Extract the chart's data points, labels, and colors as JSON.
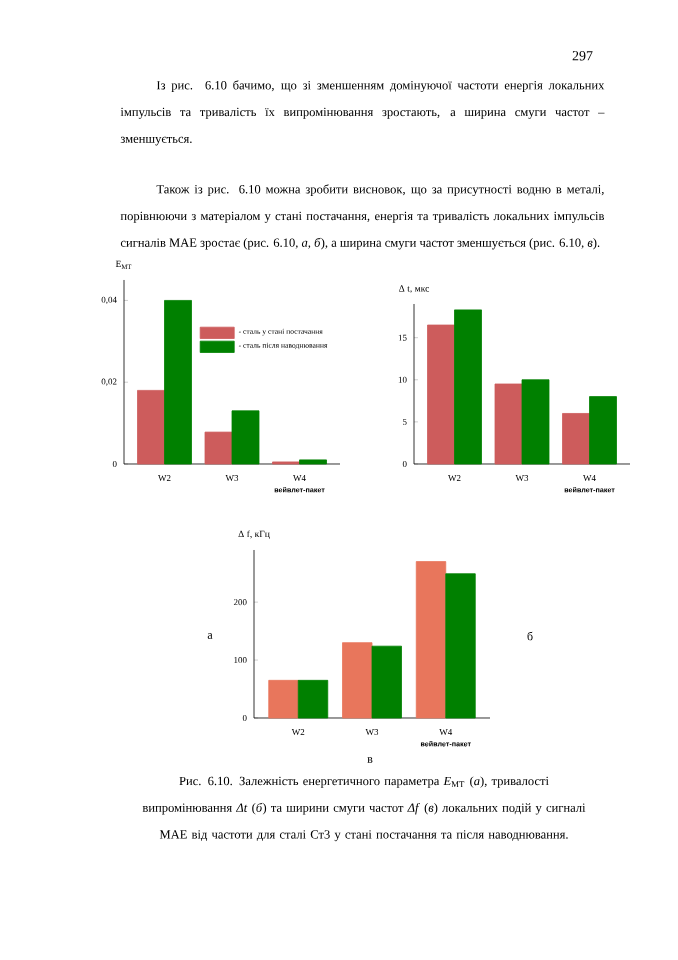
{
  "chart_data": [
    {
      "type": "bar",
      "ylabel": "E$_{МТ}$",
      "xlabel": "вейвлет-пакет",
      "categories": [
        "W2",
        "W3",
        "W4"
      ],
      "series": [
        {
          "name": "- сталь у стані постачання",
          "color": "#cd5c5c",
          "values": [
            0.018,
            0.0078,
            0.0005
          ]
        },
        {
          "name": "- сталь після наводнювання",
          "color": "#008000",
          "values": [
            0.04,
            0.013,
            0.001
          ]
        }
      ],
      "ylim": [
        0,
        0.045
      ],
      "yticks": [
        0,
        {
          "value": 0.02,
          "label": "0,02"
        },
        {
          "value": 0.04,
          "label": "0,04"
        }
      ],
      "legend": "top right",
      "annotations": [
        "а",
        "297",
        "Із рис. 6.10 бачимо, що зі зменшенням домінуючої частоти енергія локальних імпульсів та тривалість їх випромінювання зростають, а ширина смуги частот – зменшується.",
        "Також із рис. 6.10 можна зробити висновок, що за присутності водню в металі, порівнюючи з матеріалом у стані постачання, енергія та тривалість локальних імпульсів сигналів МАЕ зростає (рис. 6.10, *а*, *б*), а ширина смуги частот зменшується (рис. 6.10, *в*)."
      ]
    },
    {
      "type": "bar",
      "ylabel": "Δ t, мкс",
      "xlabel": "вейвлет-пакет",
      "categories": [
        "W2",
        "W3",
        "W4"
      ],
      "series": [
        {
          "color": "#cd5c5c",
          "values": [
            16.5,
            9.5,
            6.0
          ]
        },
        {
          "color": "#008000",
          "values": [
            18.3,
            10.0,
            8.0
          ]
        }
      ],
      "ylim": [
        0,
        19
      ],
      "yticks": [
        0,
        5,
        10,
        15
      ],
      "annotations": [
        "б"
      ]
    },
    {
      "type": "bar",
      "ylabel": "Δ f, кГц",
      "xlabel": "вейвлет-пакет",
      "categories": [
        "W2",
        "W3",
        "W4"
      ],
      "series": [
        {
          "color": "#e8765c",
          "values": [
            65,
            130,
            270
          ]
        },
        {
          "color": "#008000",
          "values": [
            65,
            124,
            249
          ]
        }
      ],
      "ylim": [
        0,
        290
      ],
      "yticks": [
        0,
        100,
        200
      ],
      "annotations": [
        "в",
        "Рис. 6.10. Залежність енергетичного параметра *E*$_{МТ}$ (*а*), тривалості випромінювання *Δt* (*б*) та ширини смуги частот *Δf* (*в*) локальних подій у сигналі МАЕ від частоти для сталі Ст3 у стані постачання та після наводнювання."
      ]
    }
  ]
}
